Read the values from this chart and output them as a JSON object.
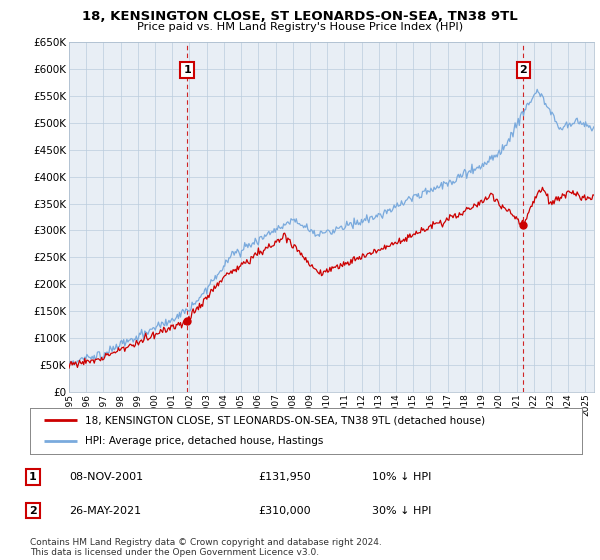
{
  "title": "18, KENSINGTON CLOSE, ST LEONARDS-ON-SEA, TN38 9TL",
  "subtitle": "Price paid vs. HM Land Registry's House Price Index (HPI)",
  "ylabel_ticks": [
    0,
    50000,
    100000,
    150000,
    200000,
    250000,
    300000,
    350000,
    400000,
    450000,
    500000,
    550000,
    600000,
    650000
  ],
  "ylim": [
    0,
    650000
  ],
  "xlim_start": 1995.0,
  "xlim_end": 2025.5,
  "transaction1": {
    "label": "1",
    "date_num": 2001.86,
    "price": 131950,
    "text": "08-NOV-2001",
    "amount": "£131,950",
    "pct": "10% ↓ HPI"
  },
  "transaction2": {
    "label": "2",
    "date_num": 2021.4,
    "price": 310000,
    "text": "26-MAY-2021",
    "amount": "£310,000",
    "pct": "30% ↓ HPI"
  },
  "legend_line1": "18, KENSINGTON CLOSE, ST LEONARDS-ON-SEA, TN38 9TL (detached house)",
  "legend_line2": "HPI: Average price, detached house, Hastings",
  "footnote": "Contains HM Land Registry data © Crown copyright and database right 2024.\nThis data is licensed under the Open Government Licence v3.0.",
  "line_color_property": "#cc0000",
  "line_color_hpi": "#7aaadd",
  "grid_color": "#bbccdd",
  "background_plot": "#e8eef5",
  "background_fig": "#ffffff",
  "marker_color": "#cc0000"
}
